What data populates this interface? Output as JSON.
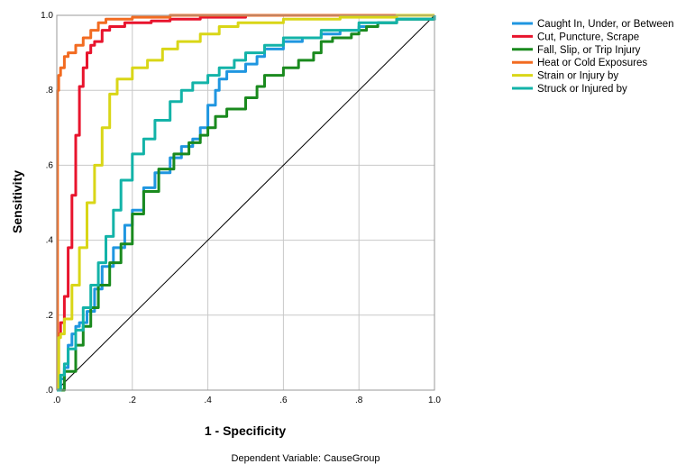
{
  "chart_data": {
    "type": "line",
    "xlabel": "1 - Specificity",
    "ylabel": "Sensitivity",
    "footnote": "Dependent Variable: CauseGroup",
    "xlim": [
      0,
      1
    ],
    "ylim": [
      0,
      1
    ],
    "x_tick_labels": [
      ".0",
      ".2",
      ".4",
      ".6",
      ".8",
      "1.0"
    ],
    "y_tick_labels": [
      ".0",
      ".2",
      ".4",
      ".6",
      ".8",
      "1.0"
    ],
    "grid": true,
    "legend_placement": "top-right",
    "reference_line": [
      [
        0,
        0
      ],
      [
        1,
        1
      ]
    ],
    "series": [
      {
        "name": "Caught In, Under, or Between",
        "color": "#1f96e0",
        "points": [
          [
            0,
            0
          ],
          [
            0.01,
            0.03
          ],
          [
            0.02,
            0.06
          ],
          [
            0.03,
            0.12
          ],
          [
            0.04,
            0.15
          ],
          [
            0.05,
            0.17
          ],
          [
            0.06,
            0.18
          ],
          [
            0.08,
            0.21
          ],
          [
            0.1,
            0.27
          ],
          [
            0.12,
            0.33
          ],
          [
            0.15,
            0.38
          ],
          [
            0.18,
            0.44
          ],
          [
            0.2,
            0.48
          ],
          [
            0.23,
            0.54
          ],
          [
            0.26,
            0.58
          ],
          [
            0.3,
            0.62
          ],
          [
            0.33,
            0.65
          ],
          [
            0.36,
            0.67
          ],
          [
            0.38,
            0.7
          ],
          [
            0.4,
            0.76
          ],
          [
            0.42,
            0.8
          ],
          [
            0.43,
            0.83
          ],
          [
            0.45,
            0.85
          ],
          [
            0.5,
            0.87
          ],
          [
            0.53,
            0.89
          ],
          [
            0.55,
            0.91
          ],
          [
            0.6,
            0.93
          ],
          [
            0.65,
            0.94
          ],
          [
            0.7,
            0.95
          ],
          [
            0.75,
            0.96
          ],
          [
            0.8,
            0.97
          ],
          [
            0.85,
            0.98
          ],
          [
            0.9,
            0.99
          ],
          [
            1,
            1
          ]
        ]
      },
      {
        "name": "Cut, Puncture, Scrape",
        "color": "#e8142d",
        "points": [
          [
            0,
            0
          ],
          [
            0.005,
            0.15
          ],
          [
            0.01,
            0.18
          ],
          [
            0.02,
            0.25
          ],
          [
            0.03,
            0.38
          ],
          [
            0.04,
            0.52
          ],
          [
            0.05,
            0.68
          ],
          [
            0.06,
            0.81
          ],
          [
            0.07,
            0.86
          ],
          [
            0.08,
            0.9
          ],
          [
            0.09,
            0.92
          ],
          [
            0.1,
            0.93
          ],
          [
            0.12,
            0.96
          ],
          [
            0.14,
            0.97
          ],
          [
            0.18,
            0.98
          ],
          [
            0.25,
            0.985
          ],
          [
            0.3,
            0.99
          ],
          [
            0.38,
            0.995
          ],
          [
            0.5,
            1
          ],
          [
            1,
            1
          ]
        ]
      },
      {
        "name": "Fall, Slip, or Trip Injury",
        "color": "#1a8a1e",
        "points": [
          [
            0,
            0
          ],
          [
            0.02,
            0.05
          ],
          [
            0.05,
            0.12
          ],
          [
            0.07,
            0.17
          ],
          [
            0.09,
            0.22
          ],
          [
            0.11,
            0.28
          ],
          [
            0.14,
            0.34
          ],
          [
            0.17,
            0.39
          ],
          [
            0.2,
            0.47
          ],
          [
            0.23,
            0.53
          ],
          [
            0.27,
            0.59
          ],
          [
            0.31,
            0.63
          ],
          [
            0.35,
            0.66
          ],
          [
            0.38,
            0.68
          ],
          [
            0.4,
            0.7
          ],
          [
            0.42,
            0.73
          ],
          [
            0.45,
            0.75
          ],
          [
            0.5,
            0.78
          ],
          [
            0.53,
            0.81
          ],
          [
            0.55,
            0.84
          ],
          [
            0.6,
            0.86
          ],
          [
            0.64,
            0.88
          ],
          [
            0.68,
            0.9
          ],
          [
            0.7,
            0.93
          ],
          [
            0.73,
            0.94
          ],
          [
            0.78,
            0.95
          ],
          [
            0.8,
            0.96
          ],
          [
            0.82,
            0.97
          ],
          [
            0.85,
            0.98
          ],
          [
            0.9,
            0.99
          ],
          [
            1,
            1
          ]
        ]
      },
      {
        "name": "Heat or Cold Exposures",
        "color": "#f26b21",
        "points": [
          [
            0,
            0
          ],
          [
            0.002,
            0.8
          ],
          [
            0.005,
            0.84
          ],
          [
            0.01,
            0.86
          ],
          [
            0.02,
            0.89
          ],
          [
            0.03,
            0.9
          ],
          [
            0.05,
            0.92
          ],
          [
            0.07,
            0.94
          ],
          [
            0.09,
            0.96
          ],
          [
            0.11,
            0.98
          ],
          [
            0.13,
            0.99
          ],
          [
            0.2,
            0.995
          ],
          [
            0.3,
            1
          ],
          [
            1,
            1
          ]
        ]
      },
      {
        "name": "Strain or Injury by",
        "color": "#d9d617",
        "points": [
          [
            0,
            0
          ],
          [
            0.005,
            0.14
          ],
          [
            0.01,
            0.15
          ],
          [
            0.02,
            0.19
          ],
          [
            0.04,
            0.28
          ],
          [
            0.06,
            0.38
          ],
          [
            0.08,
            0.5
          ],
          [
            0.1,
            0.6
          ],
          [
            0.12,
            0.7
          ],
          [
            0.14,
            0.79
          ],
          [
            0.16,
            0.83
          ],
          [
            0.2,
            0.86
          ],
          [
            0.24,
            0.88
          ],
          [
            0.28,
            0.91
          ],
          [
            0.32,
            0.93
          ],
          [
            0.38,
            0.95
          ],
          [
            0.43,
            0.97
          ],
          [
            0.48,
            0.98
          ],
          [
            0.6,
            0.99
          ],
          [
            0.75,
            0.995
          ],
          [
            0.9,
            1
          ],
          [
            1,
            1
          ]
        ]
      },
      {
        "name": "Struck or Injured by",
        "color": "#13b3a8",
        "points": [
          [
            0,
            0
          ],
          [
            0.01,
            0.04
          ],
          [
            0.02,
            0.07
          ],
          [
            0.03,
            0.11
          ],
          [
            0.05,
            0.16
          ],
          [
            0.07,
            0.22
          ],
          [
            0.09,
            0.28
          ],
          [
            0.11,
            0.34
          ],
          [
            0.13,
            0.41
          ],
          [
            0.15,
            0.48
          ],
          [
            0.17,
            0.56
          ],
          [
            0.2,
            0.63
          ],
          [
            0.23,
            0.67
          ],
          [
            0.26,
            0.72
          ],
          [
            0.3,
            0.77
          ],
          [
            0.33,
            0.8
          ],
          [
            0.36,
            0.82
          ],
          [
            0.4,
            0.84
          ],
          [
            0.43,
            0.86
          ],
          [
            0.47,
            0.88
          ],
          [
            0.5,
            0.9
          ],
          [
            0.55,
            0.92
          ],
          [
            0.6,
            0.94
          ],
          [
            0.7,
            0.96
          ],
          [
            0.8,
            0.98
          ],
          [
            0.9,
            0.99
          ],
          [
            1,
            1
          ]
        ]
      }
    ]
  }
}
